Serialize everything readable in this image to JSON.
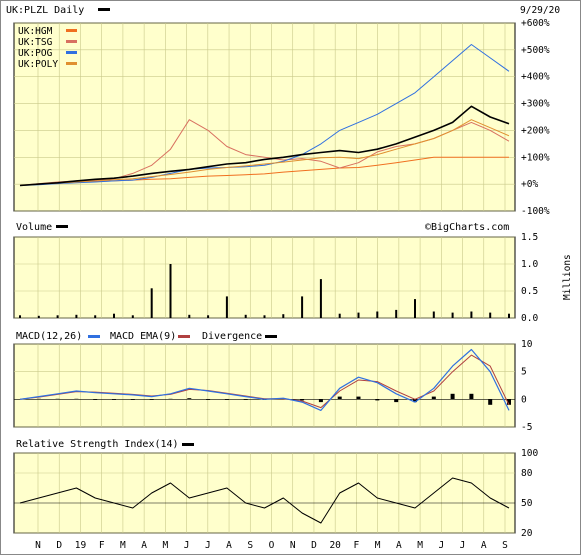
{
  "header": {
    "ticker_title": "UK:PLZL Daily",
    "date": "9/29/20",
    "watermark": "©BigCharts.com"
  },
  "colors": {
    "panel_bg": "#ffffcc",
    "plzl": "#000000",
    "hgm": "#f07020",
    "tsg": "#d87060",
    "pog": "#3070e0",
    "poly": "#e09030",
    "vol": "#000000",
    "macd": "#3070e0",
    "ema": "#b04040"
  },
  "legend": [
    {
      "label": "UK:HGM",
      "color": "#f07020"
    },
    {
      "label": "UK:TSG",
      "color": "#d87060"
    },
    {
      "label": "UK:POG",
      "color": "#3070e0"
    },
    {
      "label": "UK:POLY",
      "color": "#e09030"
    }
  ],
  "panels": {
    "volume": {
      "title": "Volume",
      "unit": "Millions"
    },
    "macd": {
      "title1": "MACD(12,26)",
      "title2": "MACD EMA(9)",
      "title3": "Divergence"
    },
    "rsi": {
      "title": "Relative Strength Index(14)"
    }
  },
  "x_axis": {
    "months": [
      "N",
      "D",
      "19",
      "F",
      "M",
      "A",
      "M",
      "J",
      "J",
      "A",
      "S",
      "O",
      "N",
      "D",
      "20",
      "F",
      "M",
      "A",
      "M",
      "J",
      "J",
      "A",
      "S"
    ]
  },
  "chart_data": [
    {
      "type": "line",
      "title": "UK:PLZL Daily",
      "ylabel": "% change",
      "ylim": [
        -100,
        600
      ],
      "yticks": [
        "+600%",
        "+500%",
        "+400%",
        "+300%",
        "+200%",
        "+100%",
        "+0%",
        "-100%"
      ],
      "series": [
        {
          "name": "UK:PLZL",
          "values": [
            -5,
            0,
            5,
            12,
            18,
            22,
            30,
            40,
            48,
            55,
            65,
            75,
            80,
            92,
            100,
            110,
            118,
            125,
            118,
            130,
            150,
            175,
            200,
            230,
            290,
            250,
            225
          ]
        },
        {
          "name": "UK:HGM",
          "values": [
            -5,
            0,
            3,
            8,
            10,
            12,
            15,
            18,
            20,
            25,
            30,
            32,
            35,
            38,
            45,
            50,
            55,
            60,
            62,
            70,
            80,
            90,
            100,
            100,
            100,
            100,
            100
          ]
        },
        {
          "name": "UK:TSG",
          "values": [
            -5,
            2,
            8,
            12,
            15,
            20,
            40,
            70,
            130,
            240,
            200,
            140,
            110,
            100,
            90,
            95,
            85,
            60,
            80,
            120,
            140,
            150,
            170,
            200,
            230,
            200,
            160
          ]
        },
        {
          "name": "UK:POG",
          "values": [
            -5,
            -2,
            2,
            5,
            8,
            12,
            15,
            25,
            40,
            55,
            60,
            62,
            65,
            70,
            85,
            110,
            150,
            200,
            230,
            260,
            300,
            340,
            400,
            460,
            520,
            470,
            420
          ]
        },
        {
          "name": "UK:POLY",
          "values": [
            -5,
            0,
            4,
            8,
            12,
            16,
            20,
            28,
            36,
            45,
            55,
            62,
            68,
            75,
            82,
            90,
            98,
            100,
            95,
            110,
            130,
            150,
            170,
            200,
            240,
            210,
            180
          ]
        }
      ]
    },
    {
      "type": "bar",
      "title": "Volume",
      "ylabel": "Millions",
      "ylim": [
        0,
        1.5
      ],
      "yticks": [
        "1.5",
        "1.0",
        "0.5",
        "0.0"
      ],
      "values": [
        0.05,
        0.04,
        0.05,
        0.06,
        0.05,
        0.08,
        0.05,
        0.07,
        0.05,
        0.06,
        0.05,
        0.05,
        0.06,
        0.05,
        0.07,
        0.06,
        0.05,
        0.08,
        0.1,
        0.12,
        0.15,
        0.18,
        0.12,
        0.1,
        0.12,
        0.1,
        0.08
      ],
      "spikes": [
        {
          "index": 7,
          "value": 0.55
        },
        {
          "index": 8,
          "value": 1.0
        },
        {
          "index": 11,
          "value": 0.4
        },
        {
          "index": 16,
          "value": 0.72
        },
        {
          "index": 15,
          "value": 0.4
        },
        {
          "index": 21,
          "value": 0.35
        }
      ]
    },
    {
      "type": "line",
      "title": "MACD(12,26)",
      "ylim": [
        -5,
        10
      ],
      "yticks": [
        "10",
        "5",
        "0",
        "-5"
      ],
      "series": [
        {
          "name": "MACD(12,26)",
          "values": [
            0,
            0.5,
            1,
            1.5,
            1.2,
            1,
            0.8,
            0.5,
            1,
            2,
            1.5,
            1,
            0.5,
            0,
            0.2,
            -0.5,
            -2,
            2,
            4,
            3,
            1,
            -0.5,
            2,
            6,
            9,
            5,
            -2
          ]
        },
        {
          "name": "MACD EMA(9)",
          "values": [
            0,
            0.4,
            0.9,
            1.4,
            1.3,
            1.1,
            0.9,
            0.6,
            0.9,
            1.8,
            1.6,
            1.1,
            0.6,
            0.1,
            0.1,
            -0.3,
            -1.5,
            1.5,
            3.5,
            3.2,
            1.5,
            0,
            1.5,
            5,
            8,
            6,
            -1
          ]
        },
        {
          "name": "Divergence",
          "values": [
            0,
            0.1,
            0.1,
            0.1,
            -0.1,
            -0.1,
            -0.1,
            -0.1,
            0.1,
            0.2,
            -0.1,
            -0.1,
            -0.1,
            -0.1,
            0.1,
            -0.2,
            -0.5,
            0.5,
            0.5,
            -0.2,
            -0.5,
            -0.5,
            0.5,
            1,
            1,
            -1,
            -1
          ]
        }
      ]
    },
    {
      "type": "line",
      "title": "Relative Strength Index(14)",
      "ylim": [
        20,
        100
      ],
      "yticks": [
        "100",
        "80",
        "50",
        "20"
      ],
      "series": [
        {
          "name": "RSI(14)",
          "values": [
            50,
            55,
            60,
            65,
            55,
            50,
            45,
            60,
            70,
            55,
            60,
            65,
            50,
            45,
            55,
            40,
            30,
            60,
            70,
            55,
            50,
            45,
            60,
            75,
            70,
            55,
            45
          ]
        }
      ]
    }
  ]
}
